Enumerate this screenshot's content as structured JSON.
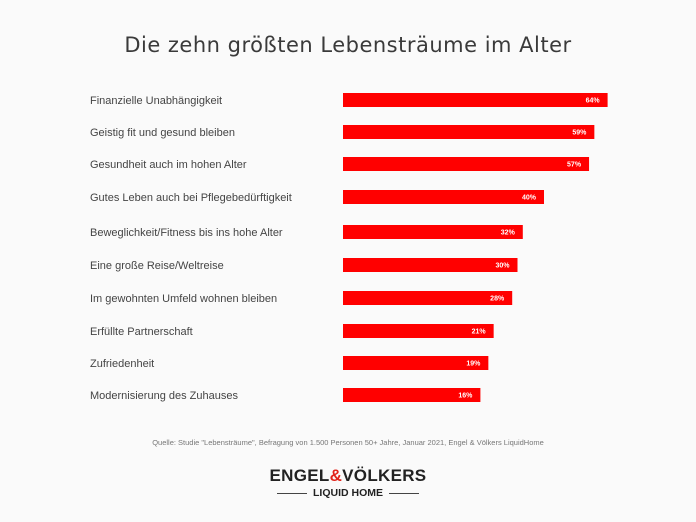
{
  "chart_data": {
    "type": "bar",
    "orientation": "horizontal",
    "title": "Die zehn größten Lebensträume im Alter",
    "categories": [
      "Finanzielle Unabhängigkeit",
      "Geistig fit und gesund bleiben",
      "Gesundheit auch im hohen Alter",
      "Gutes Leben auch bei Pflegebedürftigkeit",
      "Beweglichkeit/Fitness bis ins hohe Alter",
      "Eine große Reise/Weltreise",
      "Im gewohnten Umfeld wohnen bleiben",
      "Erfüllte Partnerschaft",
      "Zufriedenheit",
      "Modernisierung des Zuhauses"
    ],
    "values": [
      64,
      59,
      57,
      40,
      32,
      30,
      28,
      21,
      19,
      16
    ],
    "value_labels": [
      "64%",
      "59%",
      "57%",
      "40%",
      "32%",
      "30%",
      "28%",
      "21%",
      "19%",
      "16%"
    ],
    "unit": "%",
    "bar_color": "#ff0000",
    "xlabel": "",
    "ylabel": "",
    "grid": false
  },
  "source": "Quelle: Studie \"Lebensträume\", Befragung von 1.500 Personen 50+ Jahre, Januar 2021, Engel & Völkers LiquidHome",
  "logo": {
    "part1": "ENGEL",
    "amp": "&",
    "part2": "VÖLKERS",
    "sub": "LIQUID HOME"
  }
}
